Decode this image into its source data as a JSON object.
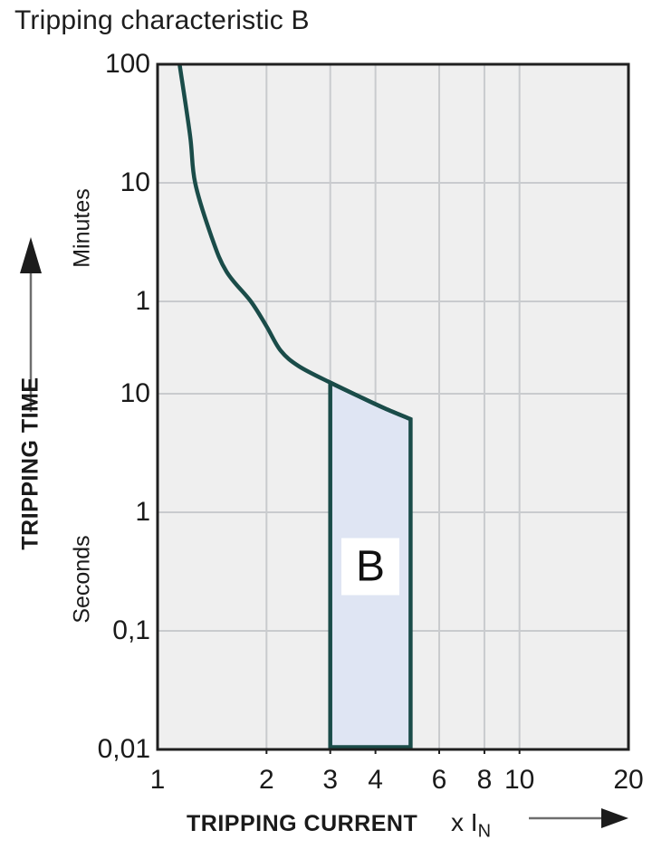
{
  "title": "Tripping characteristic B",
  "colors": {
    "curve": "#1a4c49",
    "region_fill": "#dfe5f3",
    "plot_background": "#efefef",
    "gridline": "#c9cbce",
    "plot_border": "#1f1f1f",
    "text": "#1a1a1a"
  },
  "chart_data": {
    "type": "line",
    "title": "Tripping characteristic B",
    "grid": true,
    "x_axis": {
      "label": "TRIPPING CURRENT",
      "unit_prefix": "x I",
      "unit_sub": "N",
      "scale": "log",
      "range": [
        1,
        20
      ],
      "ticks": [
        1,
        2,
        3,
        4,
        6,
        8,
        10,
        20
      ],
      "grid_ticks": [
        2,
        3,
        4,
        6,
        8,
        10
      ]
    },
    "y_axis": {
      "label": "TRIPPING TIME",
      "scale": "log",
      "range_seconds": [
        0.01,
        6000
      ],
      "unit_sections": [
        {
          "name": "Minutes",
          "center_seconds": 250
        },
        {
          "name": "Seconds",
          "center_seconds": 0.27
        }
      ],
      "ticks": [
        {
          "seconds": 6000,
          "label": "100"
        },
        {
          "seconds": 600,
          "label": "10"
        },
        {
          "seconds": 60,
          "label": "1"
        },
        {
          "seconds": 10,
          "label": "10"
        },
        {
          "seconds": 1,
          "label": "1"
        },
        {
          "seconds": 0.1,
          "label": "0,1"
        },
        {
          "seconds": 0.01,
          "label": "0,01"
        }
      ],
      "grid_seconds": [
        600,
        60,
        10,
        1,
        0.1
      ]
    },
    "series": [
      {
        "name": "thermal-trip-curve",
        "points": [
          [
            1.15,
            6000
          ],
          [
            1.23,
            1500
          ],
          [
            1.27,
            600
          ],
          [
            1.41,
            210
          ],
          [
            1.55,
            107
          ],
          [
            1.81,
            60
          ],
          [
            2.0,
            37
          ],
          [
            2.19,
            23
          ],
          [
            2.46,
            17
          ],
          [
            3.0,
            12.4
          ]
        ]
      },
      {
        "name": "magnetic-trip-upper-edge",
        "points": [
          [
            3.0,
            12.4
          ],
          [
            3.68,
            9.2
          ],
          [
            4.25,
            7.5
          ],
          [
            5.0,
            6.1
          ]
        ]
      }
    ],
    "region": {
      "label": "B",
      "x_range": [
        3,
        5
      ],
      "bottom_seconds": 0.01,
      "label_center_seconds": 0.35,
      "top_edge_points": [
        [
          3.0,
          12.4
        ],
        [
          3.68,
          9.2
        ],
        [
          4.25,
          7.5
        ],
        [
          5.0,
          6.1
        ]
      ]
    }
  }
}
